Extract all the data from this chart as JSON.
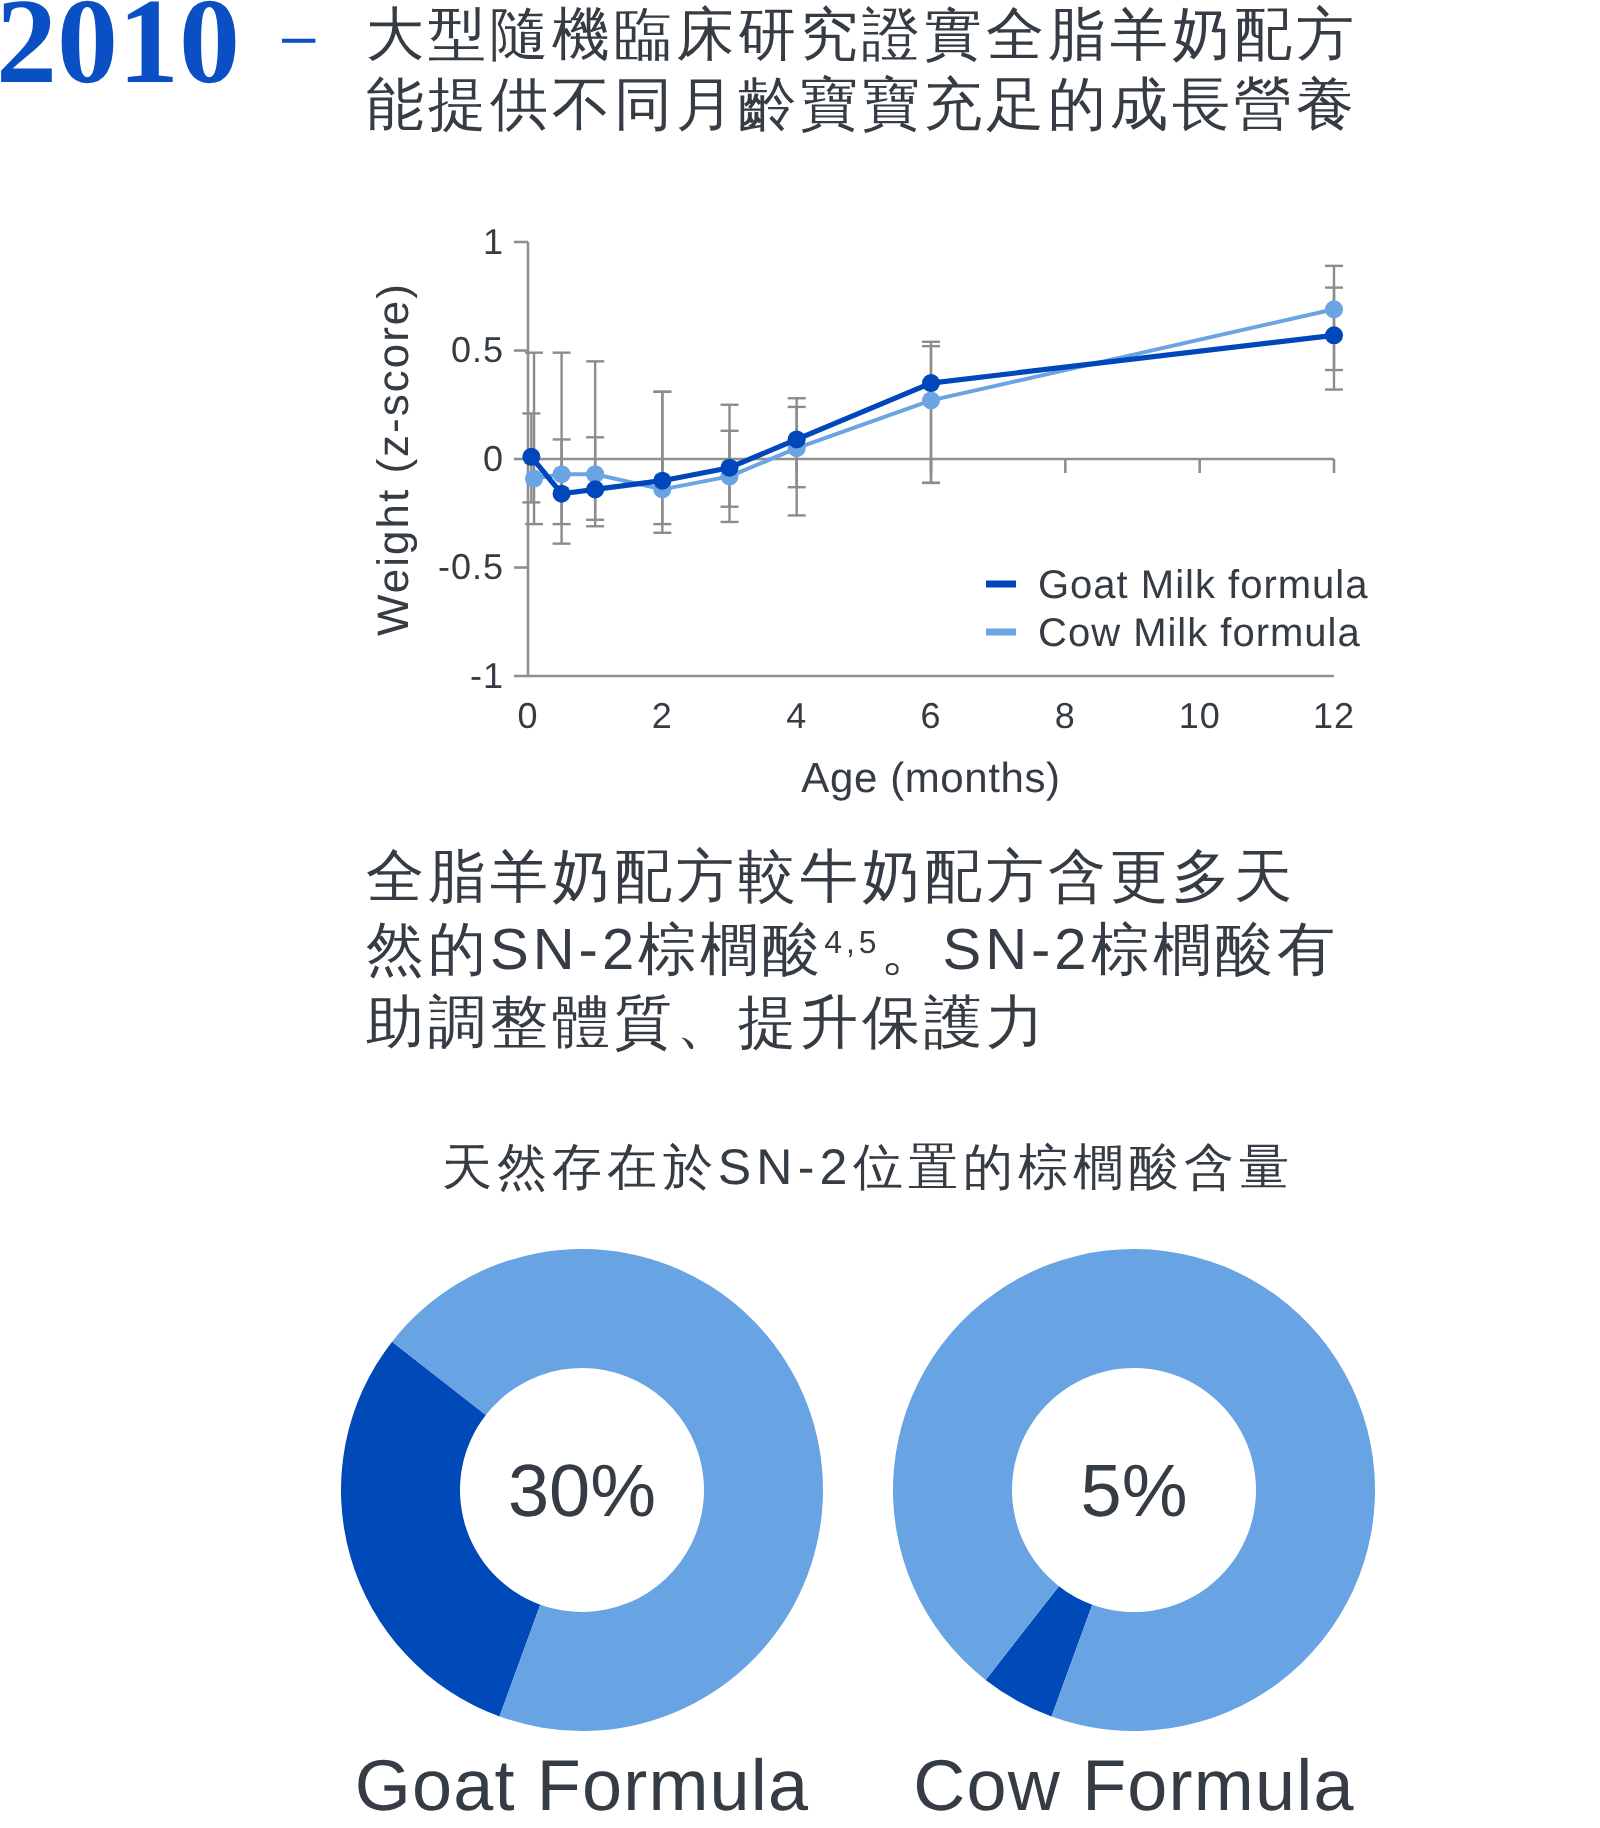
{
  "chart_data": [
    {
      "type": "line",
      "title": "2010 –",
      "subtitle": "大型隨機臨床研究證實全脂羊奶配方能提供不同月齡寶寶充足的成長營養",
      "xlabel": "Age (months)",
      "ylabel": "Weight (z-score)",
      "xlim": [
        0,
        12
      ],
      "ylim": [
        -1,
        1
      ],
      "xticks": [
        0,
        2,
        4,
        6,
        8,
        10,
        12
      ],
      "yticks": [
        -1,
        -0.5,
        0,
        0.5,
        1
      ],
      "legend": "bottom right",
      "marker": "circle",
      "line_style": "solid",
      "ref_lines": [
        {
          "axis": "y",
          "value": 0,
          "color": "#8f8f8f"
        }
      ],
      "series": [
        {
          "name": "Goat Milk formula",
          "color": "#0047bb",
          "x": [
            0.05,
            0.5,
            1,
            2,
            3,
            4,
            6,
            12
          ],
          "values": [
            0.01,
            -0.16,
            -0.14,
            -0.1,
            -0.04,
            0.09,
            0.35,
            0.57
          ],
          "errors": [
            [
              -0.2,
              0.21
            ],
            [
              -0.39,
              0.09
            ],
            [
              -0.31,
              0.1
            ],
            [
              -0.3,
              0.31
            ],
            [
              -0.22,
              0.25
            ],
            [
              -0.13,
              0.28
            ],
            [
              -0.11,
              0.54
            ],
            [
              0.32,
              0.79
            ]
          ]
        },
        {
          "name": "Cow Milk formula",
          "color": "#6aa4e3",
          "x": [
            0.09,
            0.5,
            1,
            2,
            3,
            4,
            6,
            12
          ],
          "values": [
            -0.09,
            -0.07,
            -0.07,
            -0.14,
            -0.08,
            0.05,
            0.27,
            0.69
          ],
          "errors": [
            [
              -0.3,
              0.49
            ],
            [
              -0.3,
              0.49
            ],
            [
              -0.28,
              0.45
            ],
            [
              -0.34,
              0.31
            ],
            [
              -0.29,
              0.13
            ],
            [
              -0.26,
              0.24
            ],
            [
              -0.11,
              0.52
            ],
            [
              0.41,
              0.89
            ]
          ]
        }
      ]
    },
    {
      "type": "other",
      "annotations": [
        "全脂羊奶配方較牛奶配方含更多天然的SN-2棕櫚酸$^{4,5}$。SN-2棕櫚酸有助調整體質、提升保護力",
        "天然存在於SN-2位置的棕櫚酸含量"
      ]
    },
    {
      "type": "donut",
      "title": "Goat Formula",
      "categories": [
        null,
        null
      ],
      "values": [
        30,
        70
      ],
      "colors": [
        "#0049b8",
        "#68a3e3"
      ],
      "annotations": [
        "30%"
      ]
    },
    {
      "type": "donut",
      "title": "Cow Formula",
      "categories": [
        null,
        null
      ],
      "values": [
        5,
        95
      ],
      "colors": [
        "#0049b8",
        "#68a3e3"
      ],
      "annotations": [
        "5%"
      ]
    }
  ]
}
